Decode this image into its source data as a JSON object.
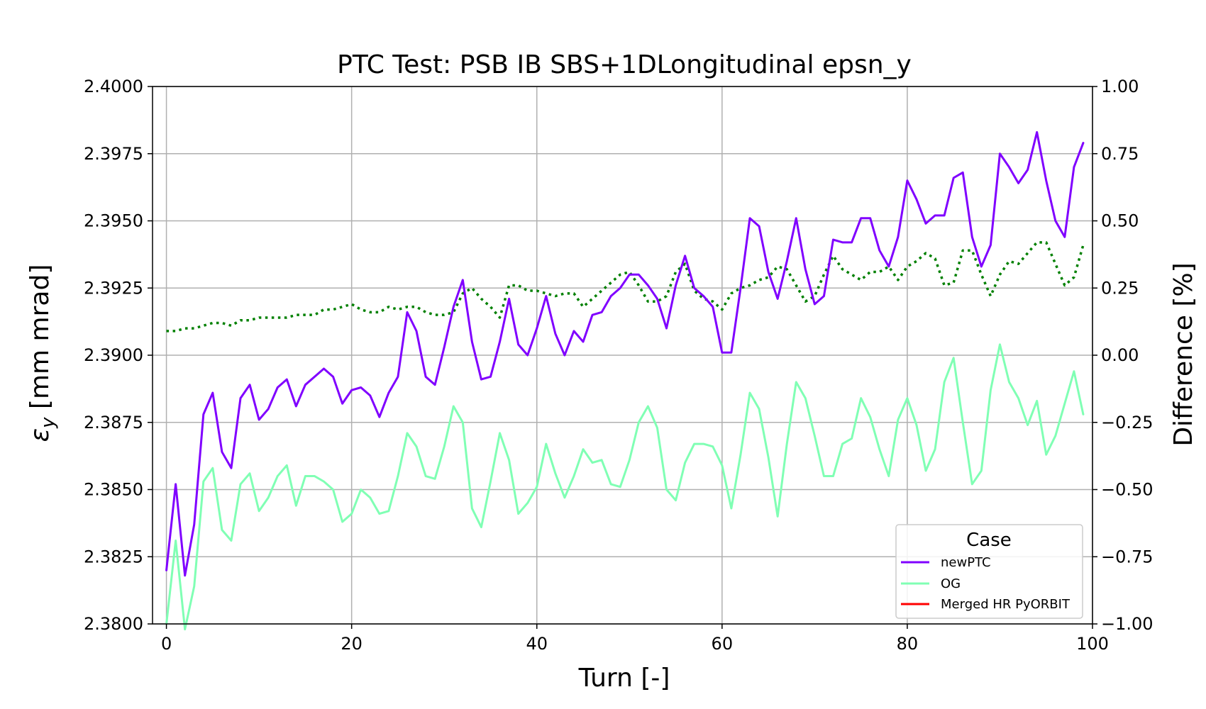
{
  "chart_data": {
    "type": "line",
    "title": "PTC Test: PSB IB SBS+1DLongitudinal epsn_y",
    "xlabel": "Turn [-]",
    "ylabel_main": "ε",
    "ylabel_sub": "y",
    "ylabel_rest": " [mm mrad]",
    "y2label": "Difference [%]",
    "xlim": [
      -1.5,
      100
    ],
    "ylim": [
      2.38,
      2.4
    ],
    "y2lim": [
      -1.0,
      1.0
    ],
    "xticks": [
      0,
      20,
      40,
      60,
      80,
      100
    ],
    "xtick_labels": [
      "0",
      "20",
      "40",
      "60",
      "80",
      "100"
    ],
    "yticks": [
      2.38,
      2.3825,
      2.385,
      2.3875,
      2.39,
      2.3925,
      2.395,
      2.3975,
      2.4
    ],
    "ytick_labels": [
      "2.3800",
      "2.3825",
      "2.3850",
      "2.3875",
      "2.3900",
      "2.3925",
      "2.3950",
      "2.3975",
      "2.4000"
    ],
    "y2ticks": [
      -1.0,
      -0.75,
      -0.5,
      -0.25,
      0.0,
      0.25,
      0.5,
      0.75,
      1.0
    ],
    "y2tick_labels": [
      "−1.00",
      "−0.75",
      "−0.50",
      "−0.25",
      "0.00",
      "0.25",
      "0.50",
      "0.75",
      "1.00"
    ],
    "grid": true,
    "legend": {
      "title": "Case",
      "placement": "lower-right"
    },
    "series": [
      {
        "name": "newPTC",
        "color": "#8000ff",
        "axis": "left",
        "style": "solid",
        "y": [
          2.382,
          2.3852,
          2.3818,
          2.3837,
          2.3878,
          2.3886,
          2.3864,
          2.3858,
          2.3884,
          2.3889,
          2.3876,
          2.388,
          2.3888,
          2.3891,
          2.3881,
          2.3889,
          2.3892,
          2.3895,
          2.3892,
          2.3882,
          2.3887,
          2.3888,
          2.3885,
          2.3877,
          2.3886,
          2.3892,
          2.3916,
          2.3909,
          2.3892,
          2.3889,
          2.3903,
          2.3918,
          2.3928,
          2.3905,
          2.3891,
          2.3892,
          2.3905,
          2.3921,
          2.3904,
          2.39,
          2.391,
          2.3922,
          2.3908,
          2.39,
          2.3909,
          2.3905,
          2.3915,
          2.3916,
          2.3922,
          2.3925,
          2.393,
          2.393,
          2.3926,
          2.3921,
          2.391,
          2.3926,
          2.3937,
          2.3925,
          2.3922,
          2.3918,
          2.3901,
          2.3901,
          2.3925,
          2.3951,
          2.3948,
          2.3931,
          2.3921,
          2.3935,
          2.3951,
          2.3932,
          2.3919,
          2.3922,
          2.3943,
          2.3942,
          2.3942,
          2.3951,
          2.3951,
          2.3939,
          2.3933,
          2.3944,
          2.3965,
          2.3958,
          2.3949,
          2.3952,
          2.3952,
          2.3966,
          2.3968,
          2.3944,
          2.3933,
          2.3941,
          2.3975,
          2.397,
          2.3964,
          2.3969,
          2.3983,
          2.3965,
          2.395,
          2.3944,
          2.397,
          2.3979
        ]
      },
      {
        "name": "OG",
        "color": "#80ffb4",
        "axis": "left",
        "style": "solid",
        "y": [
          2.38,
          2.3831,
          2.3798,
          2.3814,
          2.3853,
          2.3858,
          2.3835,
          2.3831,
          2.3852,
          2.3856,
          2.3842,
          2.3847,
          2.3855,
          2.3859,
          2.3844,
          2.3855,
          2.3855,
          2.3853,
          2.385,
          2.3838,
          2.3841,
          2.385,
          2.3847,
          2.3841,
          2.3842,
          2.3855,
          2.3871,
          2.3866,
          2.3855,
          2.3854,
          2.3866,
          2.3881,
          2.3875,
          2.3843,
          2.3836,
          2.3853,
          2.3871,
          2.3861,
          2.3841,
          2.3845,
          2.3851,
          2.3867,
          2.3856,
          2.3847,
          2.3855,
          2.3865,
          2.386,
          2.3861,
          2.3852,
          2.3851,
          2.3861,
          2.3875,
          2.3881,
          2.3873,
          2.385,
          2.3846,
          2.386,
          2.3867,
          2.3867,
          2.3866,
          2.3859,
          2.3843,
          2.3863,
          2.3886,
          2.388,
          2.3862,
          2.384,
          2.3867,
          2.389,
          2.3884,
          2.387,
          2.3855,
          2.3855,
          2.3867,
          2.3869,
          2.3884,
          2.3877,
          2.3865,
          2.3855,
          2.3876,
          2.3884,
          2.3874,
          2.3857,
          2.3865,
          2.389,
          2.3899,
          2.3875,
          2.3852,
          2.3857,
          2.3887,
          2.3904,
          2.389,
          2.3884,
          2.3874,
          2.3883,
          2.3863,
          2.387,
          2.3882,
          2.3894,
          2.3878
        ]
      },
      {
        "name": "Merged HR PyORBIT",
        "color": "#ff0000",
        "axis": "left",
        "style": "solid",
        "y": []
      },
      {
        "name": "",
        "color": "#008000",
        "axis": "right",
        "style": "dotted",
        "y": [
          0.09,
          0.09,
          0.1,
          0.1,
          0.11,
          0.12,
          0.12,
          0.11,
          0.13,
          0.13,
          0.14,
          0.14,
          0.14,
          0.14,
          0.15,
          0.15,
          0.15,
          0.17,
          0.17,
          0.18,
          0.19,
          0.17,
          0.16,
          0.16,
          0.18,
          0.17,
          0.18,
          0.18,
          0.16,
          0.15,
          0.15,
          0.16,
          0.23,
          0.25,
          0.21,
          0.18,
          0.14,
          0.26,
          0.26,
          0.24,
          0.24,
          0.23,
          0.22,
          0.23,
          0.23,
          0.18,
          0.21,
          0.24,
          0.27,
          0.3,
          0.31,
          0.26,
          0.2,
          0.2,
          0.22,
          0.31,
          0.34,
          0.24,
          0.21,
          0.2,
          0.17,
          0.23,
          0.25,
          0.26,
          0.28,
          0.29,
          0.33,
          0.32,
          0.26,
          0.2,
          0.22,
          0.3,
          0.37,
          0.32,
          0.3,
          0.28,
          0.31,
          0.31,
          0.33,
          0.28,
          0.33,
          0.35,
          0.38,
          0.36,
          0.26,
          0.27,
          0.39,
          0.39,
          0.3,
          0.22,
          0.3,
          0.35,
          0.34,
          0.38,
          0.42,
          0.42,
          0.34,
          0.26,
          0.29,
          0.41
        ]
      }
    ]
  }
}
